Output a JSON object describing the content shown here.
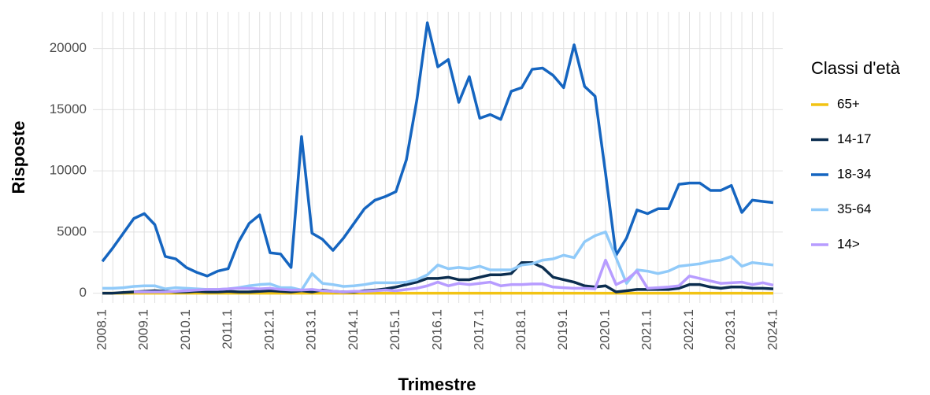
{
  "chart_data": {
    "type": "line",
    "x_label": "Trimestre",
    "y_label": "Risposte",
    "legend_title": "Classi d'età",
    "legend": "right",
    "grid": true,
    "categories": [
      "2008.1",
      null,
      null,
      null,
      "2009.1",
      null,
      null,
      null,
      "2010.1",
      null,
      null,
      null,
      "2011.1",
      null,
      null,
      null,
      "2012.1",
      null,
      null,
      null,
      "2013.1",
      null,
      null,
      null,
      "2014.1",
      null,
      null,
      null,
      "2015.1",
      null,
      null,
      null,
      "2016.1",
      null,
      null,
      null,
      "2017.1",
      null,
      null,
      null,
      "2018.1",
      null,
      null,
      null,
      "2019.1",
      null,
      null,
      null,
      "2020.1",
      null,
      null,
      null,
      "2021.1",
      null,
      null,
      null,
      "2022.1",
      null,
      null,
      null,
      "2023.1",
      null,
      null,
      null,
      "2024.1"
    ],
    "ylim": [
      -800,
      23000
    ],
    "yticks": [
      0,
      5000,
      10000,
      15000,
      20000
    ],
    "series": [
      {
        "name": "65+",
        "color": "#f2c314",
        "values": [
          0,
          0,
          0,
          0,
          0,
          0,
          0,
          0,
          0,
          0,
          0,
          0,
          0,
          0,
          0,
          0,
          0,
          0,
          0,
          0,
          0,
          0,
          0,
          0,
          0,
          0,
          0,
          0,
          0,
          0,
          0,
          0,
          0,
          0,
          0,
          0,
          0,
          0,
          0,
          0,
          0,
          0,
          0,
          0,
          0,
          0,
          0,
          0,
          0,
          0,
          0,
          0,
          0,
          0,
          0,
          0,
          0,
          0,
          0,
          0,
          0,
          0,
          0,
          0,
          0
        ]
      },
      {
        "name": "14-17",
        "color": "#0b2d4f",
        "values": [
          0,
          0,
          50,
          100,
          150,
          200,
          150,
          100,
          100,
          150,
          100,
          100,
          150,
          100,
          100,
          150,
          200,
          150,
          100,
          200,
          100,
          250,
          150,
          100,
          100,
          200,
          250,
          350,
          500,
          700,
          900,
          1200,
          1200,
          1300,
          1100,
          1100,
          1300,
          1500,
          1500,
          1600,
          2500,
          2500,
          2100,
          1300,
          1100,
          900,
          600,
          500,
          600,
          100,
          200,
          300,
          300,
          300,
          300,
          400,
          700,
          700,
          500,
          400,
          500,
          500,
          400,
          400,
          350
        ]
      },
      {
        "name": "18-34",
        "color": "#1565c0",
        "values": [
          2600,
          3700,
          4900,
          6100,
          6500,
          5600,
          3000,
          2800,
          2100,
          1700,
          1400,
          1800,
          2000,
          4200,
          5700,
          6400,
          3300,
          3200,
          2100,
          12800,
          4900,
          4400,
          3500,
          4500,
          5700,
          6900,
          7600,
          7900,
          8300,
          10900,
          15800,
          22100,
          18500,
          19100,
          15600,
          17700,
          14300,
          14600,
          14200,
          16500,
          16800,
          18300,
          18400,
          17800,
          16800,
          20300,
          16900,
          16100,
          9800,
          3100,
          4500,
          6800,
          6500,
          6900,
          6900,
          8900,
          9000,
          9000,
          8400,
          8400,
          8800,
          6600,
          7600,
          7500,
          7400
        ]
      },
      {
        "name": "35-64",
        "color": "#90caf9",
        "values": [
          400,
          400,
          450,
          550,
          600,
          600,
          350,
          450,
          400,
          350,
          300,
          300,
          350,
          450,
          600,
          700,
          750,
          450,
          450,
          250,
          1600,
          800,
          700,
          550,
          600,
          700,
          850,
          850,
          850,
          900,
          1100,
          1500,
          2300,
          2000,
          2100,
          2000,
          2200,
          1900,
          1900,
          1900,
          2300,
          2400,
          2700,
          2800,
          3100,
          2900,
          4200,
          4700,
          5000,
          2900,
          800,
          1900,
          1800,
          1600,
          1800,
          2200,
          2300,
          2400,
          2600,
          2700,
          3000,
          2200,
          2500,
          2400,
          2300
        ]
      },
      {
        "name": "14>",
        "color": "#b79cff",
        "values": [
          null,
          null,
          null,
          100,
          100,
          100,
          100,
          150,
          200,
          250,
          300,
          300,
          350,
          400,
          400,
          350,
          400,
          300,
          250,
          250,
          300,
          200,
          150,
          100,
          150,
          150,
          200,
          250,
          200,
          300,
          400,
          600,
          900,
          600,
          800,
          700,
          800,
          900,
          600,
          700,
          700,
          750,
          750,
          500,
          450,
          400,
          400,
          350,
          2700,
          700,
          1100,
          1800,
          400,
          450,
          500,
          600,
          1400,
          1200,
          1000,
          800,
          850,
          900,
          700,
          850,
          650
        ]
      }
    ]
  }
}
